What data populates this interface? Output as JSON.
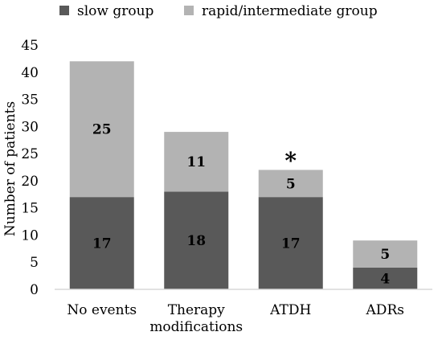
{
  "chart_data": {
    "type": "bar",
    "stacked": true,
    "categories": [
      "No events",
      "Therapy modifications",
      "ATDH",
      "ADRs"
    ],
    "category_lines": [
      [
        "No events"
      ],
      [
        "Therapy",
        "modifications"
      ],
      [
        "ATDH"
      ],
      [
        "ADRs"
      ]
    ],
    "series": [
      {
        "name": "slow group",
        "values": [
          17,
          18,
          17,
          4
        ],
        "color": "#595959"
      },
      {
        "name": "rapid/intermediate group",
        "values": [
          25,
          11,
          5,
          5
        ],
        "color": "#b3b3b3"
      }
    ],
    "ylabel": "Number of patients",
    "xlabel": "",
    "ylim": [
      0,
      45
    ],
    "yticks": [
      0,
      5,
      10,
      15,
      20,
      25,
      30,
      35,
      40,
      45
    ],
    "grid": false,
    "legend_position": "top",
    "annotations": [
      {
        "category": "ATDH",
        "text": "*"
      }
    ],
    "axis_color": "#d9d9d9"
  }
}
